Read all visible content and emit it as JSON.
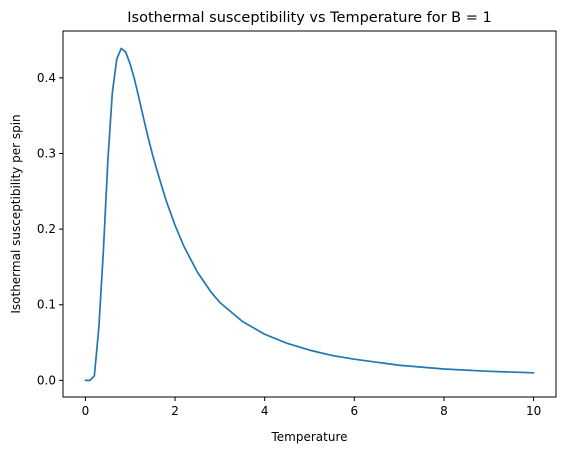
{
  "chart_data": {
    "type": "line",
    "title": "Isothermal susceptibility vs Temperature for B = 1",
    "xlabel": "Temperature",
    "ylabel": "Isothermal susceptibility per spin",
    "xlim": [
      -0.5,
      10.5
    ],
    "ylim": [
      -0.022,
      0.462
    ],
    "xticks": [
      0,
      2,
      4,
      6,
      8,
      10
    ],
    "xtick_labels": [
      "0",
      "2",
      "4",
      "6",
      "8",
      "10"
    ],
    "yticks": [
      0.0,
      0.1,
      0.2,
      0.3,
      0.4
    ],
    "ytick_labels": [
      "0.0",
      "0.1",
      "0.2",
      "0.3",
      "0.4"
    ],
    "grid": false,
    "line_color": "#1f77b4",
    "series": [
      {
        "x": [
          0.0,
          0.1,
          0.2,
          0.3,
          0.4,
          0.5,
          0.6,
          0.7,
          0.8,
          0.9,
          1.0,
          1.1,
          1.2,
          1.3,
          1.4,
          1.5,
          1.6,
          1.8,
          2.0,
          2.2,
          2.5,
          2.8,
          3.0,
          3.5,
          4.0,
          4.5,
          5.0,
          5.5,
          6.0,
          7.0,
          8.0,
          9.0,
          10.0
        ],
        "y": [
          0.0,
          0.0,
          0.006,
          0.07,
          0.17,
          0.29,
          0.38,
          0.425,
          0.439,
          0.434,
          0.418,
          0.397,
          0.372,
          0.346,
          0.321,
          0.298,
          0.277,
          0.238,
          0.205,
          0.177,
          0.143,
          0.117,
          0.103,
          0.078,
          0.061,
          0.049,
          0.04,
          0.033,
          0.028,
          0.02,
          0.015,
          0.012,
          0.01
        ]
      }
    ]
  }
}
